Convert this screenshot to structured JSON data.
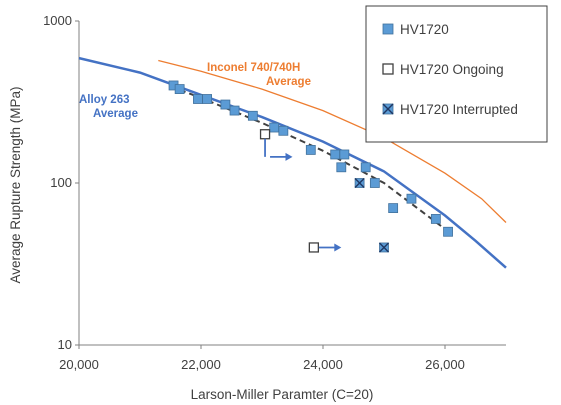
{
  "chart_data": {
    "type": "scatter",
    "title": "",
    "xlabel": "Larson-Miller Paramter (C=20)",
    "ylabel": "Average Rupture Strength (MPa)",
    "xlim": [
      20000,
      27000
    ],
    "ylim": [
      10,
      1000
    ],
    "y_scale": "log",
    "grid": false,
    "legend_position": "top-right",
    "x_ticks": [
      "20,000",
      "22,000",
      "24,000",
      "26,000"
    ],
    "y_ticks": [
      "10",
      "100",
      "1000"
    ],
    "colors": {
      "hv1720": "#5B9BD5",
      "alloy263": "#4472C4",
      "inconel": "#ED7D31",
      "trend": "#404040",
      "arrow": "#4472C4"
    },
    "series": [
      {
        "name": "HV1720",
        "points": [
          [
            21550,
            400
          ],
          [
            21650,
            380
          ],
          [
            21950,
            330
          ],
          [
            22100,
            330
          ],
          [
            22400,
            305
          ],
          [
            22550,
            280
          ],
          [
            22850,
            260
          ],
          [
            23200,
            220
          ],
          [
            23350,
            210
          ],
          [
            23800,
            160
          ],
          [
            24200,
            150
          ],
          [
            24300,
            125
          ],
          [
            24350,
            150
          ],
          [
            24700,
            125
          ],
          [
            24850,
            100
          ],
          [
            25150,
            70
          ],
          [
            25450,
            80
          ],
          [
            25850,
            60
          ],
          [
            26050,
            50
          ]
        ]
      },
      {
        "name": "HV1720 Ongoing",
        "points": [
          [
            23050,
            200
          ],
          [
            23850,
            40
          ]
        ]
      },
      {
        "name": "HV1720 Interrupted",
        "points": [
          [
            24600,
            100
          ],
          [
            25000,
            40
          ]
        ]
      }
    ],
    "curves": [
      {
        "label": "Alloy 263 Average",
        "label_lines": [
          "Alloy 263",
          "Average"
        ],
        "points": [
          [
            20000,
            590
          ],
          [
            21000,
            480
          ],
          [
            22000,
            350
          ],
          [
            23000,
            255
          ],
          [
            24000,
            180
          ],
          [
            25000,
            118
          ],
          [
            26000,
            63
          ],
          [
            26500,
            44
          ],
          [
            27000,
            30
          ]
        ]
      },
      {
        "label": "Inconel 740/740H Average",
        "label_lines": [
          "Inconel 740/740H",
          "Average"
        ],
        "points": [
          [
            21300,
            570
          ],
          [
            22000,
            490
          ],
          [
            23000,
            380
          ],
          [
            24000,
            280
          ],
          [
            25000,
            190
          ],
          [
            26000,
            115
          ],
          [
            26600,
            80
          ],
          [
            27000,
            57
          ]
        ]
      },
      {
        "label": "",
        "points": [
          [
            21500,
            395
          ],
          [
            22000,
            335
          ],
          [
            23000,
            235
          ],
          [
            24000,
            158
          ],
          [
            25000,
            100
          ],
          [
            26000,
            52
          ]
        ]
      }
    ],
    "ongoing_arrows": [
      {
        "from": [
          23050,
          145
        ],
        "to": [
          23500,
          145
        ]
      },
      {
        "from": [
          23850,
          40
        ],
        "to": [
          24300,
          40
        ]
      }
    ]
  }
}
